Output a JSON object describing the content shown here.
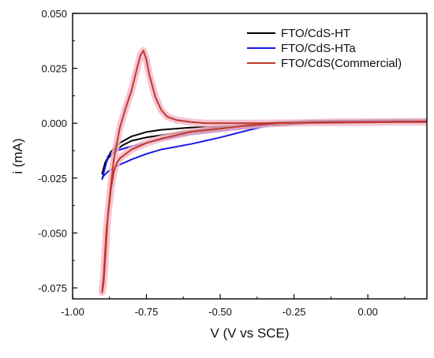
{
  "chart_data": {
    "type": "line",
    "xlabel": "V (V vs SCE)",
    "ylabel": "i (mA)",
    "xlim": [
      -1.0,
      0.2
    ],
    "ylim": [
      -0.08,
      0.05
    ],
    "x_ticks": [
      -1.0,
      -0.75,
      -0.5,
      -0.25,
      0.0
    ],
    "x_tick_labels": [
      "-1.00",
      "-0.75",
      "-0.50",
      "-0.25",
      "0.00"
    ],
    "y_ticks": [
      -0.075,
      -0.05,
      -0.025,
      0.0,
      0.025,
      0.05
    ],
    "y_tick_labels": [
      "-0.075",
      "-0.050",
      "-0.025",
      "0.000",
      "0.025",
      "0.050"
    ],
    "grid": false,
    "legend_position": "top-right",
    "series": [
      {
        "name": "FTO/CdS-HT",
        "color": "#000000",
        "x": [
          0.2,
          0.1,
          0.0,
          -0.1,
          -0.2,
          -0.3,
          -0.4,
          -0.5,
          -0.6,
          -0.7,
          -0.75,
          -0.8,
          -0.84,
          -0.87,
          -0.89,
          -0.9,
          -0.895,
          -0.88,
          -0.86,
          -0.83,
          -0.8,
          -0.75,
          -0.7,
          -0.6,
          -0.5,
          -0.4,
          -0.3,
          -0.2,
          -0.1,
          0.0,
          0.1,
          0.2
        ],
        "y": [
          0.001,
          0.001,
          0.001,
          0.0005,
          0.0,
          -0.001,
          -0.0012,
          -0.0015,
          -0.002,
          -0.003,
          -0.004,
          -0.006,
          -0.009,
          -0.013,
          -0.018,
          -0.023,
          -0.021,
          -0.016,
          -0.013,
          -0.01,
          -0.008,
          -0.0065,
          -0.0055,
          -0.0035,
          -0.002,
          -0.0005,
          0.0005,
          0.001,
          0.0012,
          0.0013,
          0.0014,
          0.0015
        ]
      },
      {
        "name": "FTO/CdS-HTa",
        "color": "#1a1ae6",
        "x": [
          0.2,
          0.1,
          0.0,
          -0.1,
          -0.2,
          -0.3,
          -0.35,
          -0.4,
          -0.5,
          -0.6,
          -0.7,
          -0.75,
          -0.8,
          -0.85,
          -0.88,
          -0.9,
          -0.895,
          -0.88,
          -0.85,
          -0.8,
          -0.75,
          -0.7,
          -0.6,
          -0.5,
          -0.4,
          -0.35,
          -0.3,
          -0.2,
          -0.1,
          0.0,
          0.1,
          0.2
        ],
        "y": [
          0.0005,
          0.0005,
          0.0003,
          0.0002,
          0.0001,
          0.0,
          -0.001,
          -0.002,
          -0.0035,
          -0.005,
          -0.0075,
          -0.009,
          -0.0105,
          -0.0125,
          -0.015,
          -0.0255,
          -0.024,
          -0.022,
          -0.0195,
          -0.0165,
          -0.014,
          -0.012,
          -0.0095,
          -0.0065,
          -0.003,
          -0.0015,
          0.0,
          0.0005,
          0.0008,
          0.001,
          0.0012,
          0.0014
        ]
      },
      {
        "name": "FTO/CdS(Commercial)",
        "color": "#c0392b",
        "x": [
          0.2,
          0.1,
          0.0,
          -0.1,
          -0.2,
          -0.3,
          -0.4,
          -0.5,
          -0.55,
          -0.6,
          -0.65,
          -0.68,
          -0.7,
          -0.72,
          -0.74,
          -0.75,
          -0.76,
          -0.77,
          -0.78,
          -0.8,
          -0.82,
          -0.84,
          -0.86,
          -0.87,
          -0.88,
          -0.885,
          -0.89,
          -0.895,
          -0.9,
          -0.895,
          -0.885,
          -0.87,
          -0.86,
          -0.85,
          -0.84,
          -0.83,
          -0.8,
          -0.75,
          -0.7,
          -0.6,
          -0.5,
          -0.4,
          -0.3,
          -0.2,
          -0.1,
          0.0,
          0.1,
          0.2
        ],
        "y": [
          0.0005,
          0.0005,
          0.0004,
          0.0003,
          0.0002,
          0.0001,
          0.0,
          0.0,
          0.0,
          0.0005,
          0.0015,
          0.003,
          0.006,
          0.012,
          0.022,
          0.029,
          0.033,
          0.031,
          0.026,
          0.015,
          0.007,
          -0.002,
          -0.016,
          -0.028,
          -0.041,
          -0.052,
          -0.063,
          -0.073,
          -0.077,
          -0.07,
          -0.048,
          -0.03,
          -0.022,
          -0.018,
          -0.016,
          -0.015,
          -0.012,
          -0.009,
          -0.007,
          -0.004,
          -0.0025,
          -0.001,
          0.0,
          0.0003,
          0.0005,
          0.0006,
          0.0007,
          0.0008
        ]
      }
    ]
  }
}
